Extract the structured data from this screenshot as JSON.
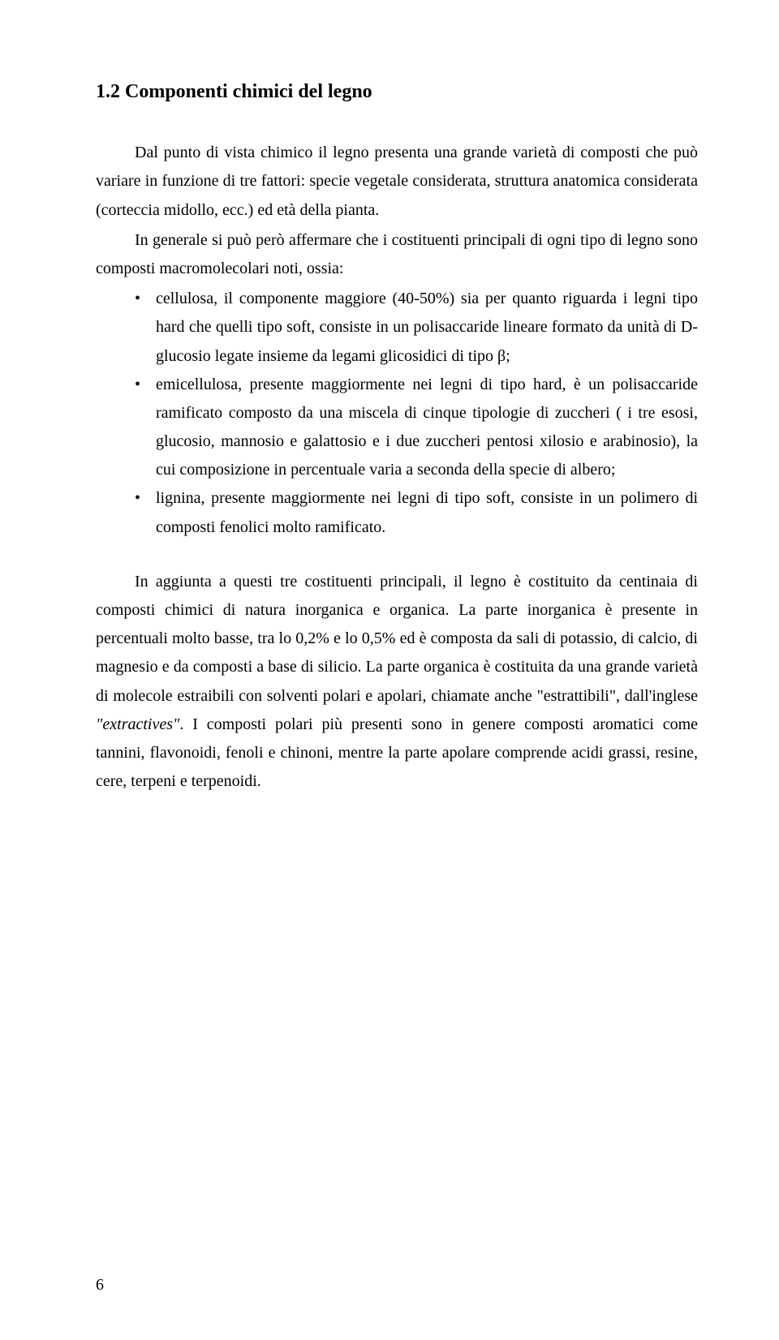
{
  "heading": "1.2 Componenti chimici del legno",
  "para1": "Dal punto di vista chimico il legno presenta una grande varietà di composti che può variare in funzione di tre fattori: specie vegetale considerata, struttura anatomica considerata (corteccia midollo, ecc.) ed età della pianta.",
  "para2_intro": "In generale si può però affermare che i costituenti principali di ogni tipo di legno sono composti macromolecolari noti, ossia:",
  "bullets": {
    "b1": "cellulosa, il componente maggiore (40-50%) sia per quanto riguarda i legni tipo hard che quelli tipo soft, consiste in un polisaccaride lineare formato da unità di D-glucosio legate insieme da legami glicosidici di tipo β;",
    "b2": "emicellulosa, presente maggiormente nei legni di tipo hard, è un polisaccaride ramificato composto da una miscela di cinque tipologie di zuccheri ( i tre esosi, glucosio, mannosio e galattosio e i due zuccheri pentosi xilosio e arabinosio), la cui composizione in percentuale varia a seconda della specie di albero;",
    "b3": "lignina, presente maggiormente nei legni di tipo soft, consiste in un polimero di composti fenolici molto ramificato."
  },
  "para3_a": "In aggiunta a questi tre costituenti principali, il legno è costituito da centinaia di composti chimici di natura inorganica e organica. La parte inorganica è presente in percentuali molto basse, tra lo 0,2% e lo 0,5% ed è composta da sali di potassio, di calcio, di magnesio e da composti a base di silicio. La parte organica è costituita da una grande varietà di molecole estraibili con solventi polari e apolari, chiamate anche \"estrattibili\", dall'inglese ",
  "para3_italic": "\"extractives\"",
  "para3_b": ". I composti polari più presenti sono in genere composti aromatici come tannini, flavonoidi, fenoli e chinoni, mentre la parte apolare comprende acidi grassi, resine, cere, terpeni e terpenoidi.",
  "page_number": "6"
}
